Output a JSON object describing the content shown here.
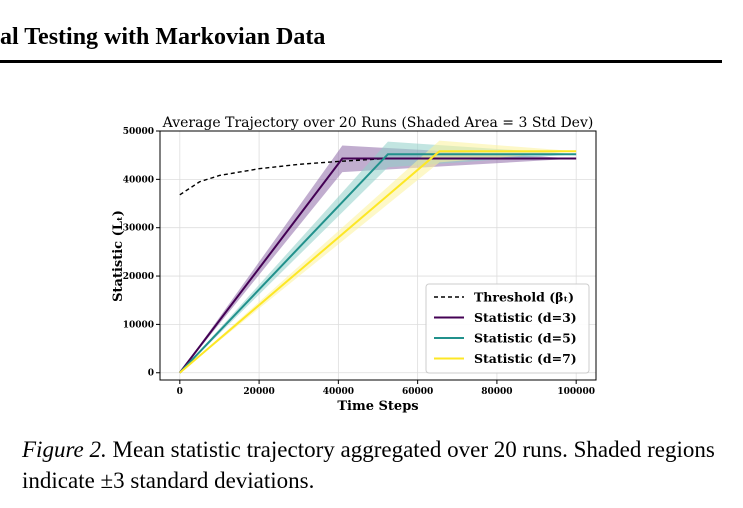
{
  "header": {
    "title": "al Testing with Markovian Data"
  },
  "figure": {
    "caption_label": "Figure 2.",
    "caption_text": " Mean statistic trajectory aggregated over 20 runs. Shaded regions indicate ±3 standard deviations."
  },
  "chart_data": {
    "type": "line",
    "title": "Average Trajectory over 20 Runs (Shaded Area = 3 Std Dev)",
    "xlabel": "Time Steps",
    "ylabel": "Statistic (Lₜ)",
    "xlim": [
      -5000,
      105000
    ],
    "ylim": [
      -1500,
      50000
    ],
    "xticks": [
      0,
      20000,
      40000,
      60000,
      80000,
      100000
    ],
    "yticks": [
      0,
      10000,
      20000,
      30000,
      40000,
      50000
    ],
    "grid": true,
    "legend_position": "lower-right",
    "threshold": {
      "name": "Threshold (βₜ)",
      "color": "#000000",
      "style": "dashed",
      "x": [
        0,
        5000,
        10000,
        20000,
        30000,
        40000,
        50000,
        52000
      ],
      "y": [
        36800,
        39500,
        40800,
        42200,
        43100,
        43700,
        44200,
        44300
      ]
    },
    "series": [
      {
        "name": "Statistic (d=3)",
        "color": "#440154",
        "band_color": "#8e6aa8",
        "x": [
          0,
          41000,
          100000
        ],
        "y": [
          0,
          44300,
          44300
        ],
        "band_upper": [
          0,
          47000,
          44300
        ],
        "band_lower": [
          0,
          41500,
          44300
        ]
      },
      {
        "name": "Statistic (d=5)",
        "color": "#21918c",
        "band_color": "#8fd0c8",
        "x": [
          0,
          52500,
          100000
        ],
        "y": [
          0,
          45200,
          45200
        ],
        "band_upper": [
          0,
          47800,
          45200
        ],
        "band_lower": [
          0,
          42500,
          45200
        ]
      },
      {
        "name": "Statistic (d=7)",
        "color": "#fde725",
        "band_color": "#fbf29a",
        "x": [
          0,
          65500,
          100000
        ],
        "y": [
          0,
          45800,
          45800
        ],
        "band_upper": [
          0,
          48000,
          45800
        ],
        "band_lower": [
          0,
          43500,
          45800
        ]
      }
    ]
  }
}
